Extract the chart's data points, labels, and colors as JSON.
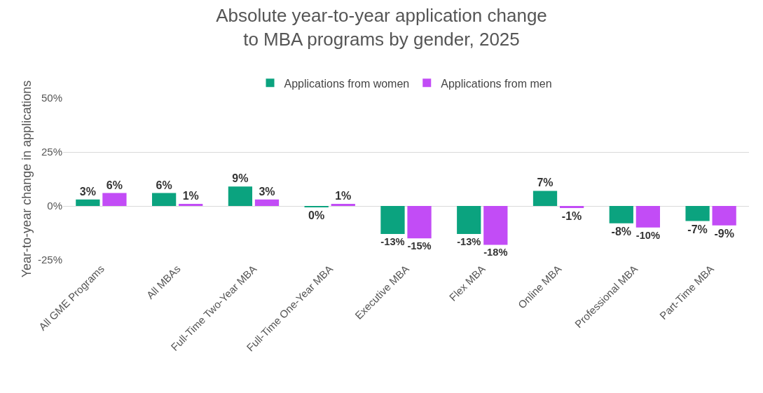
{
  "chart_data": {
    "type": "bar",
    "title": "Absolute year-to-year application change\nto MBA programs by gender, 2025",
    "ylabel": "Year-to-year change in applications",
    "categories": [
      "All GME Programs",
      "All MBAs",
      "Full-Time Two-Year MBA",
      "Full-Time One-Year MBA",
      "Executive MBA",
      "Flex MBA",
      "Online MBA",
      "Professional MBA",
      "Part-Time MBA"
    ],
    "series": [
      {
        "name": "Applications from women",
        "color": "#0ba37f",
        "values": [
          3,
          6,
          9,
          -0.4,
          -13,
          -13,
          7,
          -8,
          -7
        ],
        "value_labels": [
          "3%",
          "6%",
          "9%",
          "0%",
          "-13%",
          "-13%",
          "7%",
          "-8%",
          "-7%"
        ]
      },
      {
        "name": "Applications from men",
        "color": "#c24cf6",
        "values": [
          6,
          1,
          3,
          1,
          -15,
          -18,
          -1,
          -10,
          -9
        ],
        "value_labels": [
          "6%",
          "1%",
          "3%",
          "1%",
          "-15%",
          "-18%",
          "-1%",
          "-10%",
          "-9%"
        ]
      }
    ],
    "ylim": [
      -25,
      50
    ],
    "yticks": [
      {
        "value": 50,
        "label": "50%"
      },
      {
        "value": 25,
        "label": "25%"
      },
      {
        "value": 0,
        "label": "0%"
      },
      {
        "value": -25,
        "label": "-25%"
      }
    ],
    "grid": "y",
    "legend": "top"
  }
}
